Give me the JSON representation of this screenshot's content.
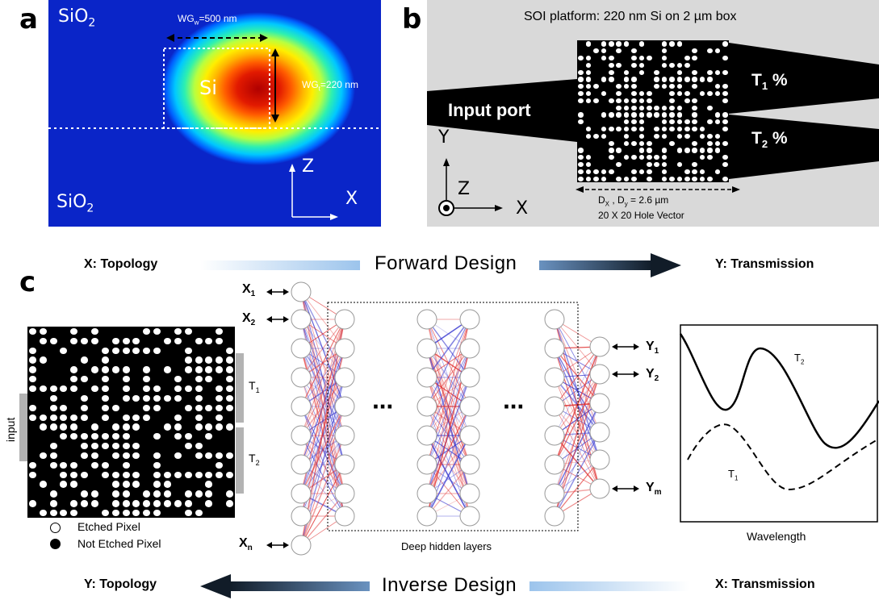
{
  "panel_a": {
    "letter": "a",
    "top_label_main": "SiO",
    "top_label_sub": "2",
    "bottom_label_main": "SiO",
    "bottom_label_sub": "2",
    "core_label": "Si",
    "width_label_main": "WG",
    "width_label_sub": "w",
    "width_label_val": "=500 nm",
    "height_label_main": "WG",
    "height_label_sub": "t",
    "height_label_val": "=220 nm",
    "axis_z": "Z",
    "axis_x": "X",
    "colors": {
      "background": "#0a25c8",
      "hot": "#b00000"
    }
  },
  "panel_b": {
    "letter": "b",
    "title": "SOI platform: 220 nm Si on 2 µm box",
    "input_port": "Input port",
    "t1_main": "T",
    "t1_sub": "1",
    "t1_suffix": " %",
    "t2_main": "T",
    "t2_sub": "2",
    "t2_suffix": " %",
    "axis_y": "Y",
    "axis_z": "Z",
    "axis_x": "X",
    "dim_line1_a": "D",
    "dim_line1_a_sub": "X",
    "dim_line1_b": " , D",
    "dim_line1_b_sub": "y",
    "dim_line1_c": " = 2.6 µm",
    "dim_line2": "20 X 20 Hole Vector"
  },
  "panel_c": {
    "letter": "c",
    "forward_left": "X: Topology",
    "forward_mid": "Forward Design",
    "forward_right": "Y: Transmission",
    "inverse_left": "Y: Topology",
    "inverse_mid": "Inverse Design",
    "inverse_right": "X: Transmission",
    "input_label": "input",
    "t1_main": "T",
    "t1_sub": "1",
    "t2_main": "T",
    "t2_sub": "2",
    "legend_etched": "Etched Pixel",
    "legend_not_etched": "Not Etched Pixel",
    "x1_main": "X",
    "x1_sub": "1",
    "x2_main": "X",
    "x2_sub": "2",
    "xn_main": "X",
    "xn_sub": "n",
    "y1_main": "Y",
    "y1_sub": "1",
    "y2_main": "Y",
    "y2_sub": "2",
    "ym_main": "Y",
    "ym_sub": "m",
    "ellipsis": "···",
    "hidden_layers": "Deep hidden layers",
    "plot_xlabel": "Wavelength",
    "plot_t1_main": "T",
    "plot_t1_sub": "1",
    "plot_t2_main": "T",
    "plot_t2_sub": "2"
  },
  "colors": {
    "neg_weight": "#3b3bd0",
    "pos_weight": "#e03030",
    "arrow_dark": "#1c2c3c",
    "arrow_light": "#9cc4ec"
  }
}
